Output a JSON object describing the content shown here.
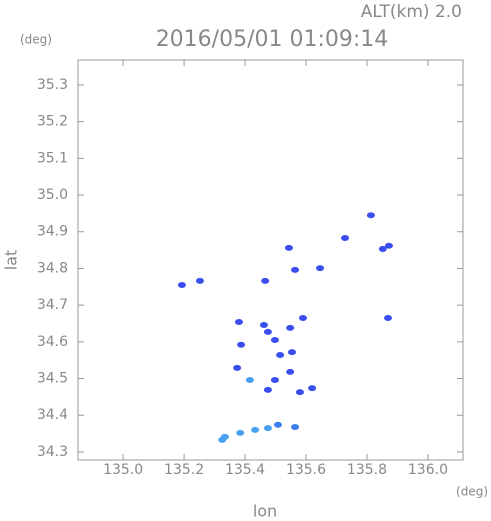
{
  "chart_data": {
    "type": "scatter",
    "title": "2016/05/01 01:09:14",
    "subtitle": "ALT(km) 2.0",
    "y_unit": "(deg)",
    "x_unit": "(deg)",
    "x_label": "lon",
    "y_label": "lat",
    "x": [
      135.813,
      135.728,
      135.852,
      135.872,
      135.544,
      135.564,
      135.646,
      135.252,
      135.193,
      135.466,
      135.869,
      135.38,
      135.462,
      135.475,
      135.548,
      135.59,
      135.498,
      135.387,
      135.515,
      135.554,
      135.374,
      135.498,
      135.548,
      135.62,
      135.58,
      135.475,
      135.416,
      135.475,
      135.508,
      135.433,
      135.384,
      135.334,
      135.325,
      135.564
    ],
    "values": [
      34.945,
      34.883,
      34.853,
      34.862,
      34.856,
      34.796,
      34.801,
      34.766,
      34.755,
      34.766,
      34.665,
      34.654,
      34.646,
      34.627,
      34.638,
      34.665,
      34.605,
      34.592,
      34.564,
      34.572,
      34.529,
      34.496,
      34.518,
      34.474,
      34.463,
      34.469,
      34.496,
      34.365,
      34.374,
      34.36,
      34.352,
      34.341,
      34.333,
      34.368
    ],
    "colors": [
      "#3a4ef0",
      "#3a4ef0",
      "#3a4ef0",
      "#3a4ef0",
      "#3a4ef0",
      "#3a4ef0",
      "#3a4ef0",
      "#3a4ef0",
      "#3a4ef0",
      "#3a4ef0",
      "#3a4ef0",
      "#3a4ef0",
      "#3a4ef0",
      "#3a4ef0",
      "#3a4ef0",
      "#3a4ef0",
      "#3a4ef0",
      "#3a4ef0",
      "#3a4ef0",
      "#3a4ef0",
      "#3a4ef0",
      "#3a4ef0",
      "#3a4ef0",
      "#3a4ef0",
      "#3a4ef0",
      "#3a4ef0",
      "#4aa0f0",
      "#4aa0f0",
      "#3a7ef0",
      "#4aa0f0",
      "#4aa0f0",
      "#4aa0f0",
      "#4aa0f0",
      "#3a7ef0"
    ],
    "xlim": [
      134.852,
      136.115
    ],
    "ylim": [
      34.278,
      35.368
    ],
    "xticks": [
      {
        "value": 135,
        "label": "135.0"
      },
      135.2,
      135.4,
      135.6,
      135.8,
      {
        "value": 136,
        "label": "136.0"
      }
    ],
    "yticks": [
      34.3,
      34.4,
      34.5,
      34.6,
      34.7,
      34.8,
      34.9,
      {
        "value": 35,
        "label": "35.0"
      },
      35.1,
      35.2,
      35.3
    ]
  }
}
